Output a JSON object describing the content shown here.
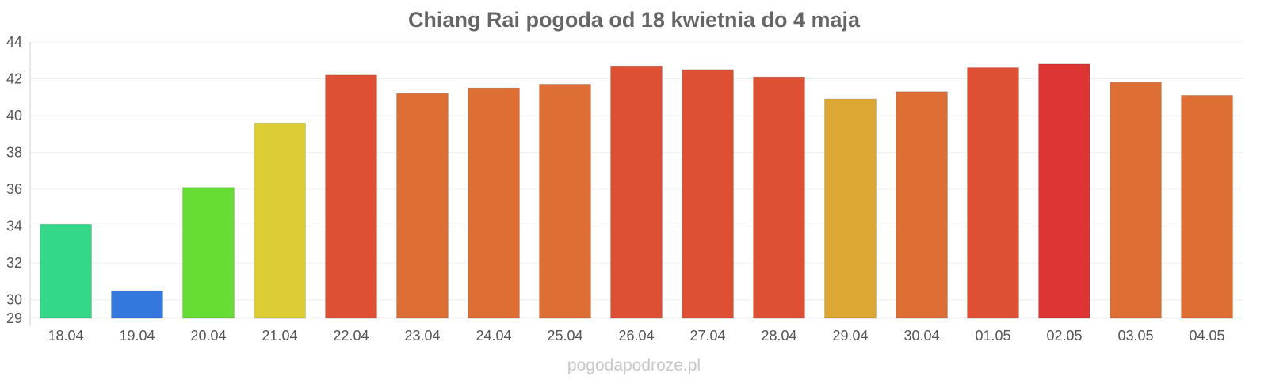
{
  "chart_data": {
    "type": "bar",
    "title": "Chiang Rai pogoda od 18 kwietnia do 4 maja",
    "xlabel": "",
    "ylabel": "",
    "categories": [
      "18.04",
      "19.04",
      "20.04",
      "21.04",
      "22.04",
      "23.04",
      "24.04",
      "25.04",
      "26.04",
      "27.04",
      "28.04",
      "29.04",
      "30.04",
      "01.05",
      "02.05",
      "03.05",
      "04.05"
    ],
    "values": [
      34.1,
      30.5,
      36.1,
      39.6,
      42.2,
      41.2,
      41.5,
      41.7,
      42.7,
      42.5,
      42.1,
      40.9,
      41.3,
      42.6,
      42.8,
      41.8,
      41.1
    ],
    "colors": [
      "#34d888",
      "#3477dd",
      "#66dd34",
      "#ddcd34",
      "#dd5034",
      "#dd6e34",
      "#dd6e34",
      "#dd6e34",
      "#dd5034",
      "#dd5034",
      "#dd5034",
      "#dda734",
      "#dd6e34",
      "#dd5034",
      "#dd3434",
      "#dd6e34",
      "#dd6e34"
    ],
    "ylim": [
      29,
      44
    ],
    "yticks": [
      "29",
      "30",
      "32",
      "34",
      "36",
      "38",
      "40",
      "42",
      "44"
    ],
    "grid": true,
    "legend": "none"
  },
  "watermark": "pogodapodroze.pl"
}
